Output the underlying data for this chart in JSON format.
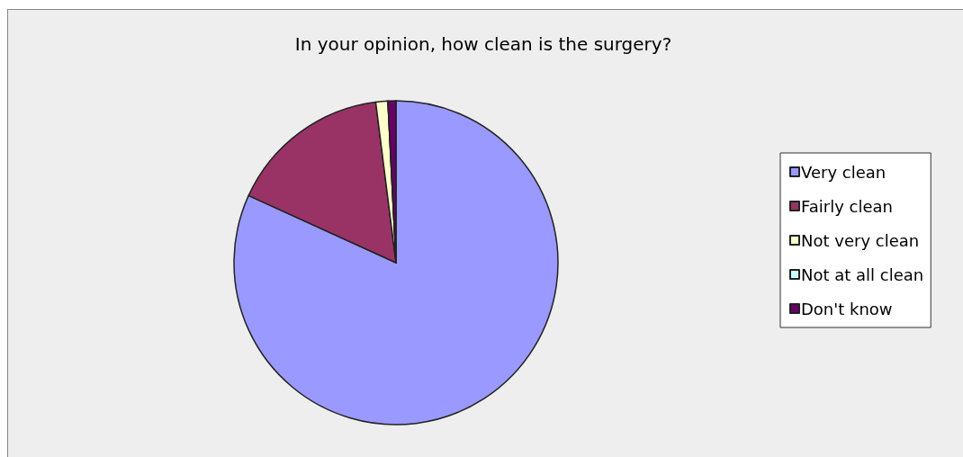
{
  "chart_data": {
    "type": "pie",
    "title": "In your opinion, how clean is the surgery?",
    "categories": [
      "Very clean",
      "Fairly clean",
      "Not very clean",
      "Not at all clean",
      "Don't know"
    ],
    "values": [
      81.8,
      16.2,
      1.2,
      0,
      0.8
    ],
    "colors": [
      "#9999ff",
      "#993366",
      "#ffffcc",
      "#ccffff",
      "#660066"
    ],
    "legend": "right"
  }
}
